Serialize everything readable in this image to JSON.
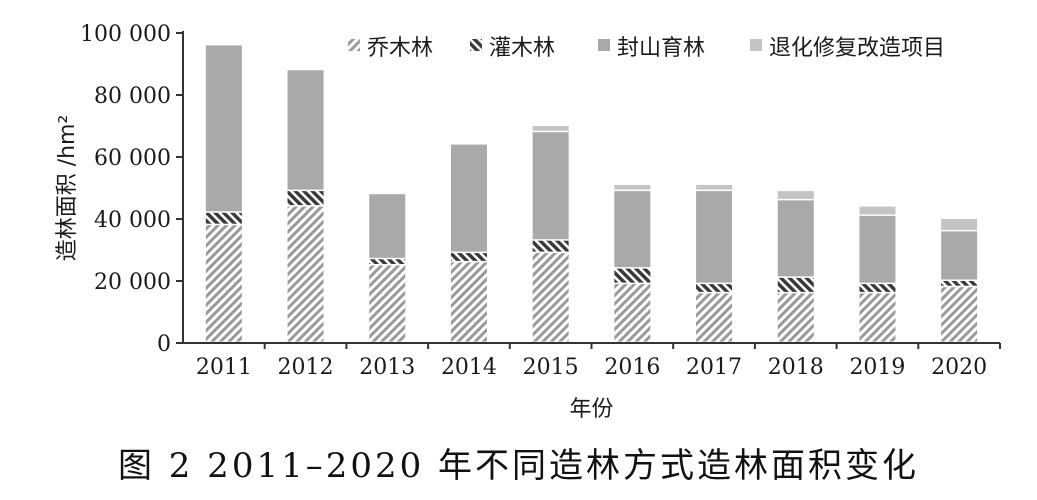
{
  "caption": "图 2   2011–2020 年不同造林方式造林面积变化",
  "chart_data": {
    "type": "bar",
    "stacked": true,
    "categories": [
      "2011",
      "2012",
      "2013",
      "2014",
      "2015",
      "2016",
      "2017",
      "2018",
      "2019",
      "2020"
    ],
    "series": [
      {
        "name": "乔木林",
        "pattern": "hatch-light",
        "values": [
          38000,
          44000,
          25000,
          26000,
          29000,
          19000,
          16000,
          16000,
          16000,
          18000
        ]
      },
      {
        "name": "灌木林",
        "pattern": "hatch-dark",
        "values": [
          4000,
          5000,
          2000,
          3000,
          4000,
          5000,
          3000,
          5000,
          3000,
          2000
        ]
      },
      {
        "name": "封山育林",
        "pattern": "solid-medium",
        "values": [
          54000,
          39000,
          21000,
          35000,
          35000,
          25000,
          30000,
          25000,
          22000,
          16000
        ]
      },
      {
        "name": "退化修复改造项目",
        "pattern": "solid-light",
        "values": [
          0,
          0,
          0,
          0,
          2000,
          2000,
          2000,
          3000,
          3000,
          4000
        ]
      }
    ],
    "ylim": [
      0,
      100000
    ],
    "yticks": [
      0,
      20000,
      40000,
      60000,
      80000,
      100000
    ],
    "ytick_labels": [
      "0",
      "20 000",
      "40 000",
      "60 000",
      "80 000",
      "100 000"
    ],
    "xlabel": "年份",
    "ylabel": "造林面积 /hm²",
    "legend_position": "top",
    "grid": false,
    "colors": {
      "solid_medium": "#a9a9a9",
      "solid_light": "#c4c4c4",
      "hatch_light": "#9a9a9a",
      "hatch_dark": "#3a3a3a",
      "axis": "#333333"
    }
  }
}
